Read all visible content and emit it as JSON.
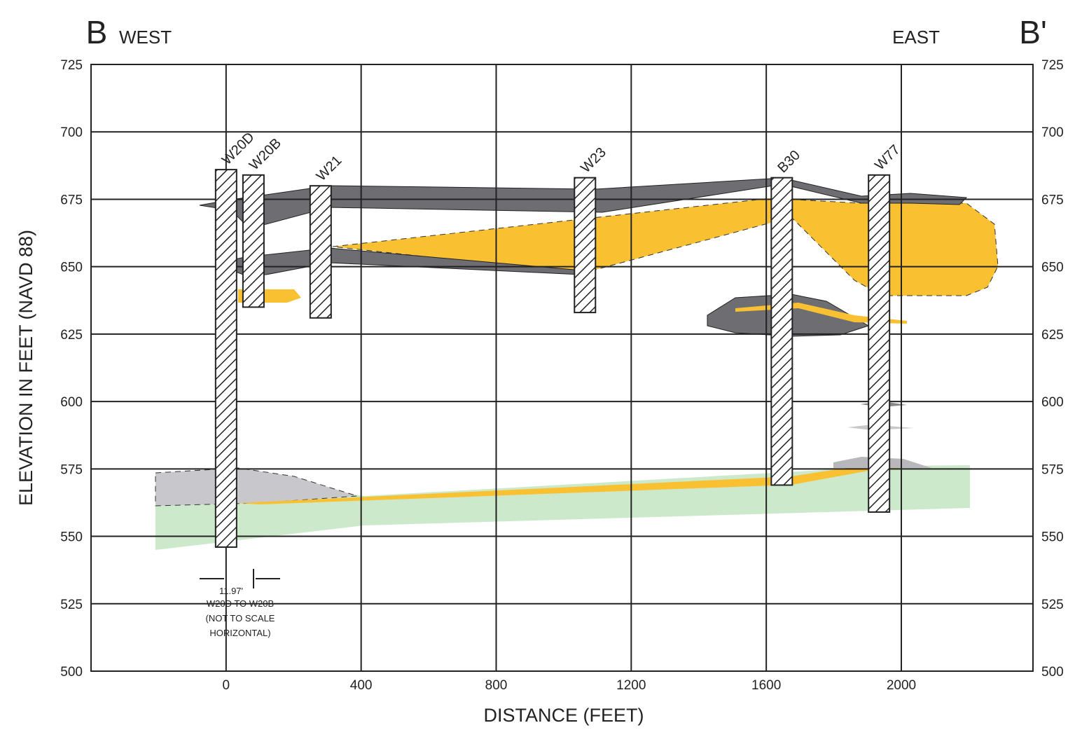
{
  "header": {
    "left_letter": "B",
    "left_direction": "WEST",
    "right_direction": "EAST",
    "right_letter": "B'"
  },
  "axes": {
    "x_title": "DISTANCE (FEET)",
    "y_title": "ELEVATION IN FEET (NAVD 88)",
    "xlim": [
      -400,
      2390
    ],
    "ylim": [
      500,
      725
    ],
    "xticks": [
      0,
      400,
      800,
      1200,
      1600,
      2000
    ],
    "yticks": [
      500,
      525,
      550,
      575,
      600,
      625,
      650,
      675,
      700,
      725
    ]
  },
  "wells": [
    {
      "name": "W20D",
      "x": 0,
      "top": 686,
      "bottom": 546
    },
    {
      "name": "W20B",
      "x": 81,
      "top": 684,
      "bottom": 635
    },
    {
      "name": "W21",
      "x": 280,
      "top": 680,
      "bottom": 631
    },
    {
      "name": "W23",
      "x": 1063,
      "top": 683,
      "bottom": 633
    },
    {
      "name": "B30",
      "x": 1646,
      "top": 683,
      "bottom": 569
    },
    {
      "name": "W77",
      "x": 1934,
      "top": 684,
      "bottom": 559
    }
  ],
  "annotation": {
    "distance": "11.97'",
    "line1": "W20D TO W20B",
    "line2": "(NOT TO SCALE",
    "line3": "HORIZONTAL)"
  }
}
